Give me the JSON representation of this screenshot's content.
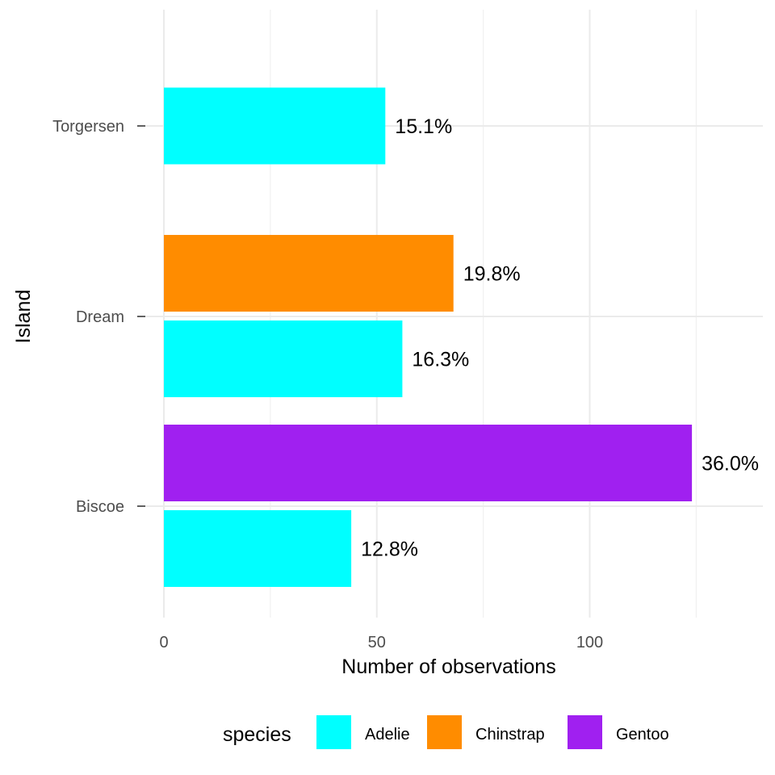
{
  "chart_data": {
    "type": "bar",
    "orientation": "horizontal",
    "xlabel": "Number of observations",
    "ylabel": "Island",
    "xlim": [
      0,
      140
    ],
    "x_ticks": [
      0,
      50,
      100
    ],
    "x_minor_ticks": [
      25,
      75,
      125
    ],
    "grid": true,
    "categories": [
      "Biscoe",
      "Dream",
      "Torgersen"
    ],
    "legend": {
      "title": "species",
      "position": "bottom",
      "entries": [
        {
          "name": "Adelie",
          "color": "#00FFFF"
        },
        {
          "name": "Chinstrap",
          "color": "#FF8C00"
        },
        {
          "name": "Gentoo",
          "color": "#A020F0"
        }
      ]
    },
    "bars": [
      {
        "category": "Biscoe",
        "species": "Gentoo",
        "value": 124,
        "label": "36.0%"
      },
      {
        "category": "Biscoe",
        "species": "Adelie",
        "value": 44,
        "label": "12.8%"
      },
      {
        "category": "Dream",
        "species": "Chinstrap",
        "value": 68,
        "label": "19.8%"
      },
      {
        "category": "Dream",
        "species": "Adelie",
        "value": 56,
        "label": "16.3%"
      },
      {
        "category": "Torgersen",
        "species": "Adelie",
        "value": 52,
        "label": "15.1%"
      }
    ]
  }
}
